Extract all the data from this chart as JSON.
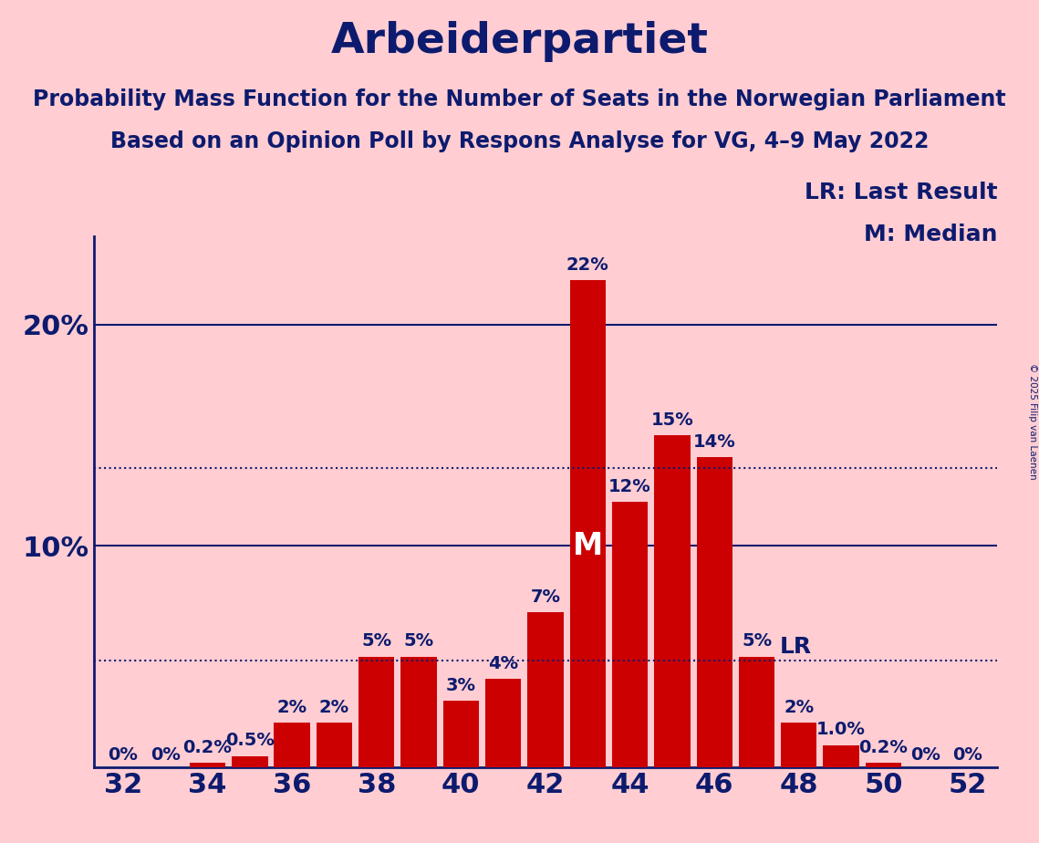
{
  "title": "Arbeiderpartiet",
  "subtitle1": "Probability Mass Function for the Number of Seats in the Norwegian Parliament",
  "subtitle2": "Based on an Opinion Poll by Respons Analyse for VG, 4–9 May 2022",
  "copyright": "© 2025 Filip van Laenen",
  "categories": [
    32,
    33,
    34,
    35,
    36,
    37,
    38,
    39,
    40,
    41,
    42,
    43,
    44,
    45,
    46,
    47,
    48,
    49,
    50,
    51,
    52
  ],
  "values": [
    0.0,
    0.0,
    0.2,
    0.5,
    2.0,
    2.0,
    5.0,
    5.0,
    3.0,
    4.0,
    7.0,
    22.0,
    12.0,
    15.0,
    14.0,
    5.0,
    2.0,
    1.0,
    0.2,
    0.0,
    0.0
  ],
  "bar_labels": [
    "0%",
    "0%",
    "0.2%",
    "0.5%",
    "2%",
    "2%",
    "5%",
    "5%",
    "3%",
    "4%",
    "7%",
    "22%",
    "12%",
    "15%",
    "14%",
    "5%",
    "2%",
    "1.0%",
    "0.2%",
    "0%",
    "0%"
  ],
  "bar_color": "#CC0000",
  "background_color": "#FFCDD2",
  "axis_color": "#0D1B6E",
  "text_color": "#0D1B6E",
  "title_fontsize": 34,
  "subtitle_fontsize": 17,
  "bar_label_fontsize": 14,
  "axis_tick_fontsize": 22,
  "legend_fontsize": 18,
  "ylim": [
    0,
    24
  ],
  "xlabel_ticks": [
    32,
    34,
    36,
    38,
    40,
    42,
    44,
    46,
    48,
    50,
    52
  ],
  "median_seat": 43,
  "median_idx": 11,
  "lr_dotted_value": 4.8,
  "lr_label_idx": 15,
  "median_dotted_value": 13.5,
  "solid_gridlines": [
    10.0,
    20.0
  ],
  "dotted_gridlines": [
    13.5,
    4.8
  ]
}
